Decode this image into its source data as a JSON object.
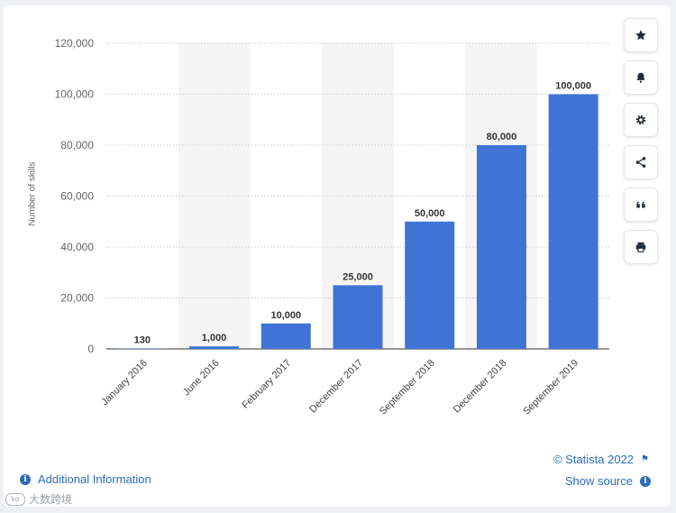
{
  "chart_data": {
    "type": "bar",
    "categories": [
      "January 2016",
      "June 2016",
      "February 2017",
      "December 2017",
      "September 2018",
      "December 2018",
      "September 2019"
    ],
    "values": [
      130,
      1000,
      10000,
      25000,
      50000,
      80000,
      100000
    ],
    "value_labels": [
      "130",
      "1,000",
      "10,000",
      "25,000",
      "50,000",
      "80,000",
      "100,000"
    ],
    "title": "",
    "xlabel": "",
    "ylabel": "Number of skills",
    "ylim": [
      0,
      120000
    ],
    "yticks": [
      0,
      20000,
      40000,
      60000,
      80000,
      100000,
      120000
    ],
    "ytick_labels": [
      "0",
      "20,000",
      "40,000",
      "60,000",
      "80,000",
      "100,000",
      "120,000"
    ],
    "grid": true,
    "bar_color": "#3f74d6",
    "band_color": "#f5f5f5"
  },
  "toolbar": {
    "icons": [
      "star-icon",
      "bell-icon",
      "gear-icon",
      "share-icon",
      "quote-icon",
      "print-icon"
    ]
  },
  "footer": {
    "additional_info": "Additional Information",
    "copyright": "© Statista 2022",
    "show_source": "Show source"
  },
  "watermark": {
    "text": "大数跨境"
  }
}
